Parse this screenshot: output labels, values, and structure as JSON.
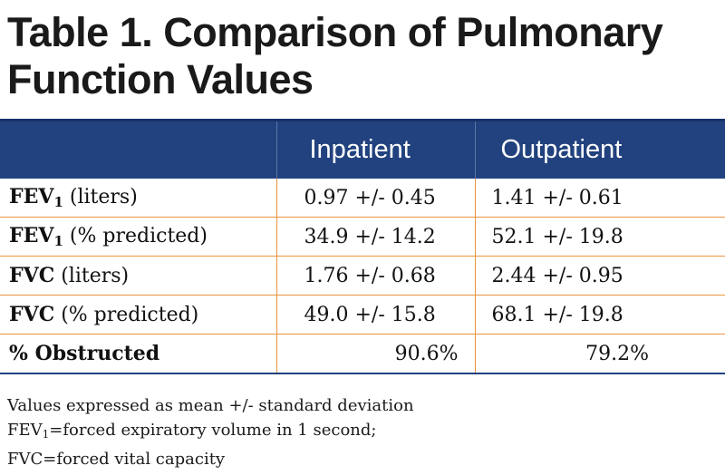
{
  "title_line1": "Table 1. Comparison of Pulmonary",
  "title_line2": "Function Values",
  "table": {
    "columns": [
      "",
      "Inpatient",
      "Outpatient"
    ],
    "rows": [
      {
        "label_bold": "FEV",
        "label_sub": "1",
        "label_rest": " (liters)",
        "inpatient": "0.97 +/- 0.45",
        "outpatient": "1.41 +/- 0.61"
      },
      {
        "label_bold": "FEV",
        "label_sub": "1",
        "label_rest": " (% predicted)",
        "inpatient": "34.9 +/- 14.2",
        "outpatient": "52.1 +/- 19.8"
      },
      {
        "label_bold": "FVC",
        "label_sub": "",
        "label_rest": " (liters)",
        "inpatient": "1.76 +/- 0.68",
        "outpatient": "2.44 +/- 0.95"
      },
      {
        "label_bold": "FVC",
        "label_sub": "",
        "label_rest": " (% predicted)",
        "inpatient": "49.0 +/- 15.8",
        "outpatient": "68.1 +/- 19.8"
      },
      {
        "label_bold": "% Obstructed",
        "label_sub": "",
        "label_rest": "",
        "inpatient": "90.6%",
        "outpatient": "79.2%"
      }
    ]
  },
  "notes": {
    "line1": "Values expressed as mean +/- standard deviation",
    "line2_pre": "FEV",
    "line2_sub": "1",
    "line2_post": "=forced expiratory volume in 1 second;",
    "line3": "FVC=forced vital capacity"
  }
}
